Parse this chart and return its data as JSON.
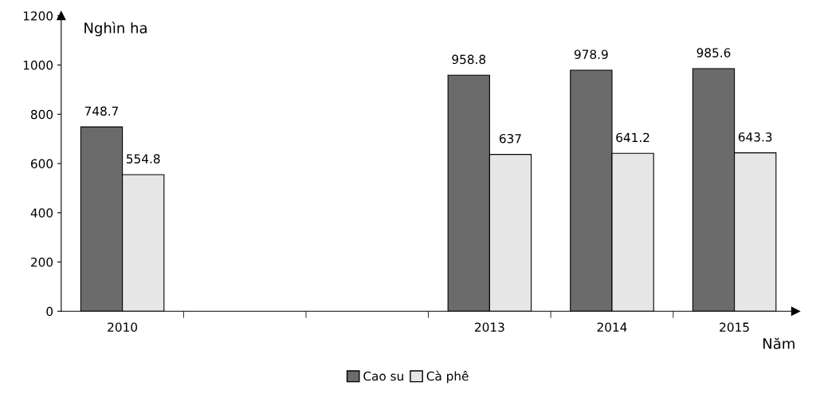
{
  "chart_data": {
    "type": "bar",
    "ylabel": "Nghìn ha",
    "xlabel": "Năm",
    "categories": [
      "2010",
      null,
      null,
      "2013",
      "2014",
      "2015"
    ],
    "series": [
      {
        "name": "Cao su",
        "color": "#6b6b6b",
        "values": [
          748.7,
          null,
          null,
          958.8,
          978.9,
          985.6
        ]
      },
      {
        "name": "Cà phê",
        "color": "#e6e6e6",
        "values": [
          554.8,
          null,
          null,
          637,
          641.2,
          643.3
        ]
      }
    ],
    "ylim": [
      0,
      1200
    ],
    "yticks": [
      0,
      200,
      400,
      600,
      800,
      1000,
      1200
    ],
    "data_labels": true,
    "grid": false,
    "legend": "bottom"
  }
}
